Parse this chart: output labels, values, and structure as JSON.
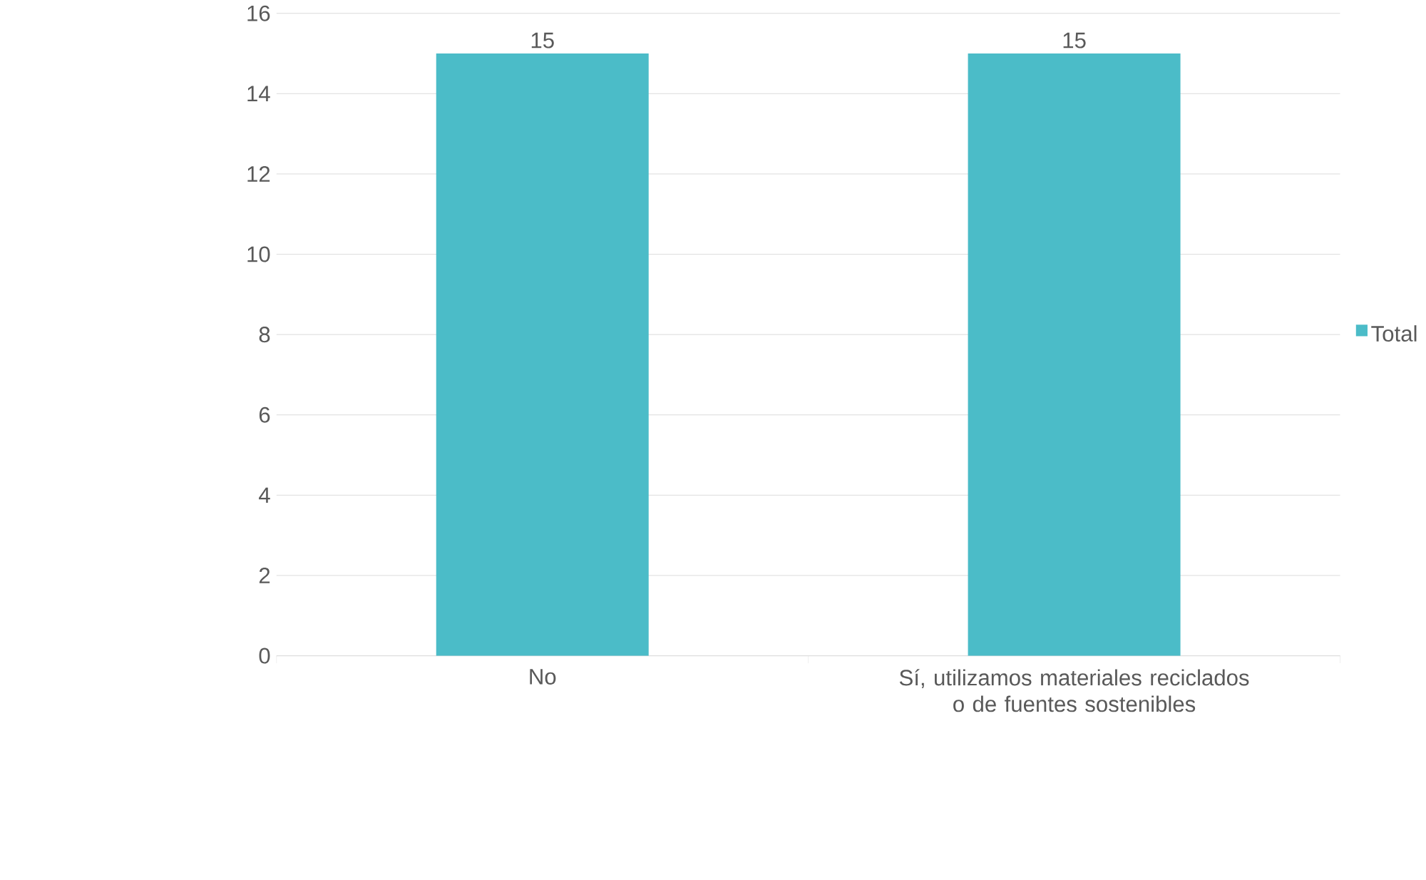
{
  "chart_data": {
    "type": "bar",
    "categories": [
      "No",
      "Sí, utilizamos materiales reciclados o de fuentes sostenibles"
    ],
    "series": [
      {
        "name": "Total",
        "color": "#4bbcc8",
        "values": [
          15,
          15
        ]
      }
    ],
    "ylim": [
      0,
      16
    ],
    "yticks": [
      0,
      2,
      4,
      6,
      8,
      10,
      12,
      14,
      16
    ],
    "grid": "y",
    "legend": "right",
    "data_labels": true
  }
}
